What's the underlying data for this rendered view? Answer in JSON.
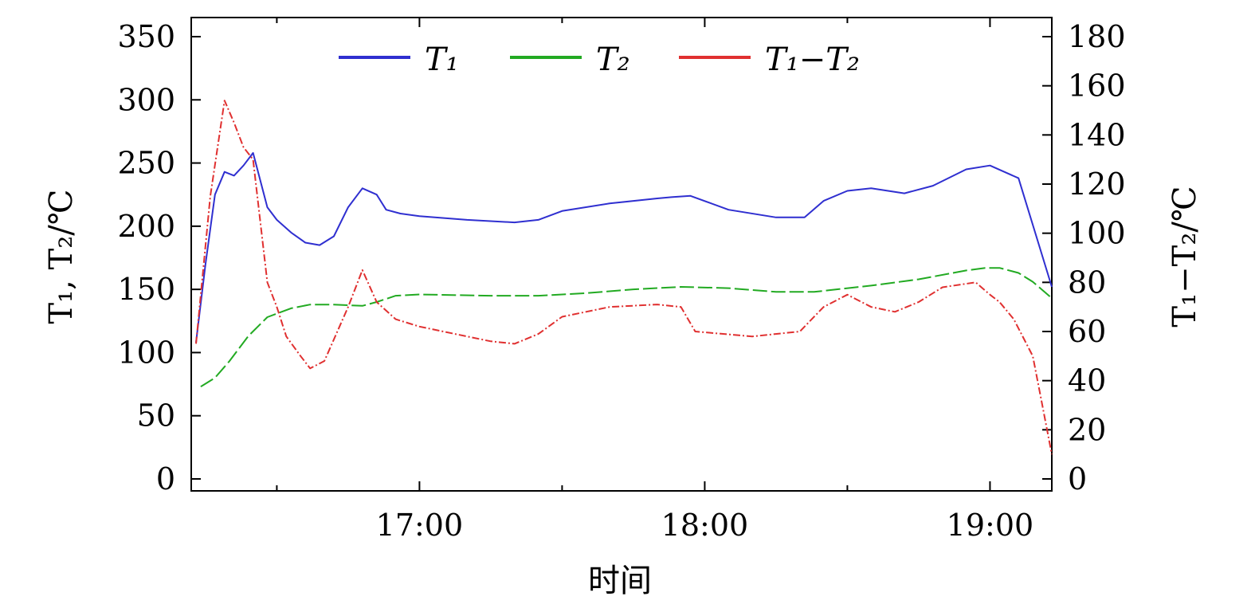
{
  "chart_data": {
    "type": "line",
    "xlabel": "时间",
    "ylabel_left": "T₁, T₂/℃",
    "ylabel_right": "T₁−T₂/℃",
    "x_ticks": [
      "17:00",
      "18:00",
      "19:00"
    ],
    "x_domain": [
      "16:12",
      "19:13"
    ],
    "ylim_left": [
      0,
      350
    ],
    "ylim_right": [
      0,
      180
    ],
    "y_ticks_left": [
      0,
      50,
      100,
      150,
      200,
      250,
      300,
      350
    ],
    "y_ticks_right": [
      0,
      20,
      40,
      60,
      80,
      100,
      120,
      140,
      160,
      180
    ],
    "legend_position": "top-center",
    "grid": false,
    "colors": {
      "T1": "#2f2fd0",
      "T2": "#22aa22",
      "diff": "#e03030"
    },
    "series": [
      {
        "name": "T₁",
        "axis": "left",
        "style": "solid",
        "x": [
          "16:13",
          "16:15",
          "16:17",
          "16:19",
          "16:21",
          "16:23",
          "16:25",
          "16:28",
          "16:30",
          "16:33",
          "16:36",
          "16:39",
          "16:42",
          "16:45",
          "16:48",
          "16:51",
          "16:53",
          "16:56",
          "17:00",
          "17:10",
          "17:20",
          "17:25",
          "17:30",
          "17:40",
          "17:50",
          "17:53",
          "17:57",
          "18:05",
          "18:15",
          "18:21",
          "18:25",
          "18:30",
          "18:35",
          "18:42",
          "18:48",
          "18:55",
          "19:00",
          "19:06",
          "19:13"
        ],
        "values": [
          108,
          170,
          225,
          243,
          240,
          248,
          258,
          215,
          205,
          195,
          187,
          185,
          192,
          215,
          230,
          225,
          213,
          210,
          208,
          205,
          203,
          205,
          212,
          218,
          222,
          223,
          224,
          213,
          207,
          207,
          220,
          228,
          230,
          226,
          232,
          245,
          248,
          238,
          152
        ]
      },
      {
        "name": "T₂",
        "axis": "left",
        "style": "dash",
        "x": [
          "16:14",
          "16:17",
          "16:20",
          "16:24",
          "16:28",
          "16:33",
          "16:37",
          "16:42",
          "16:48",
          "16:51",
          "16:55",
          "17:00",
          "17:15",
          "17:25",
          "17:35",
          "17:45",
          "17:55",
          "18:05",
          "18:15",
          "18:23",
          "18:35",
          "18:45",
          "18:55",
          "18:59",
          "19:02",
          "19:06",
          "19:09",
          "19:13"
        ],
        "values": [
          73,
          80,
          93,
          113,
          128,
          135,
          138,
          138,
          137,
          140,
          145,
          146,
          145,
          145,
          147,
          150,
          152,
          151,
          148,
          148,
          153,
          158,
          165,
          167,
          167,
          163,
          156,
          143
        ]
      },
      {
        "name": "T₁−T₂",
        "axis": "right",
        "style": "dashdot",
        "x": [
          "16:13",
          "16:16",
          "16:19",
          "16:21",
          "16:23",
          "16:25",
          "16:28",
          "16:30",
          "16:32",
          "16:35",
          "16:37",
          "16:40",
          "16:45",
          "16:48",
          "16:51",
          "16:55",
          "17:00",
          "17:10",
          "17:15",
          "17:20",
          "17:25",
          "17:30",
          "17:40",
          "17:50",
          "17:55",
          "17:58",
          "18:10",
          "18:20",
          "18:25",
          "18:30",
          "18:35",
          "18:40",
          "18:45",
          "18:50",
          "18:57",
          "19:00",
          "19:02",
          "19:05",
          "19:09",
          "19:11",
          "19:13"
        ],
        "values": [
          55,
          115,
          154,
          145,
          135,
          130,
          80,
          70,
          58,
          50,
          45,
          48,
          70,
          85,
          72,
          65,
          62,
          58,
          56,
          55,
          59,
          66,
          70,
          71,
          70,
          60,
          58,
          60,
          70,
          75,
          70,
          68,
          72,
          78,
          80,
          75,
          72,
          65,
          50,
          30,
          10
        ]
      }
    ]
  }
}
